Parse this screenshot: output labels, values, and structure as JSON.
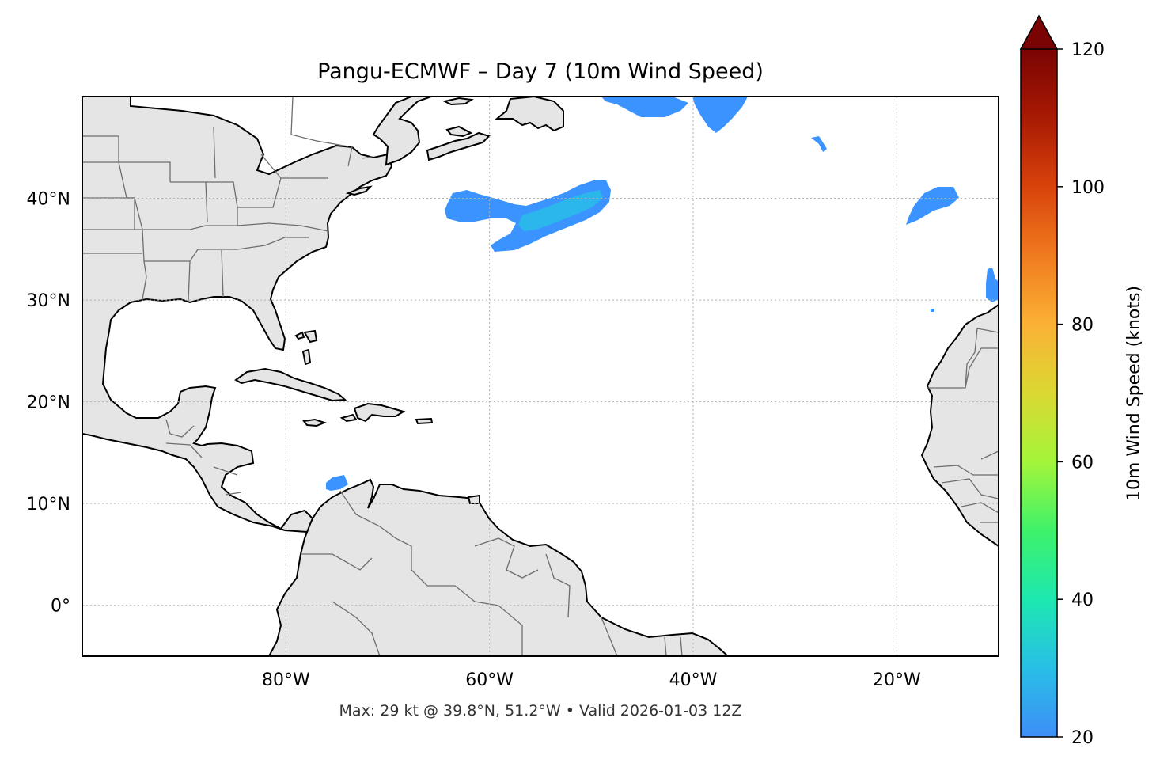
{
  "title": "Pangu-ECMWF – Day 7 (10m Wind Speed)",
  "footer": "Max: 29 kt @ 39.8°N, 51.2°W • Valid 2026-01-03 12Z",
  "map": {
    "lon_range": [
      -100,
      -10
    ],
    "lat_range": [
      -5,
      50
    ],
    "lat_ticks": [
      {
        "value": 40,
        "label": "40°N"
      },
      {
        "value": 30,
        "label": "30°N"
      },
      {
        "value": 20,
        "label": "20°N"
      },
      {
        "value": 10,
        "label": "10°N"
      },
      {
        "value": 0,
        "label": "0°"
      }
    ],
    "lon_ticks": [
      {
        "value": -80,
        "label": "80°W"
      },
      {
        "value": -60,
        "label": "60°W"
      },
      {
        "value": -40,
        "label": "40°W"
      },
      {
        "value": -20,
        "label": "20°W"
      }
    ],
    "land_color": "#e5e5e5",
    "wind_color": "#3a93ff",
    "wind_core_color": "#29bde8"
  },
  "colorbar": {
    "label": "10m Wind Speed (knots)",
    "min": 20,
    "max": 120,
    "ticks": [
      20,
      40,
      60,
      80,
      100,
      120
    ],
    "extend": "max",
    "colormap": [
      "#3e8ef7",
      "#28bfe6",
      "#1de8b0",
      "#3ef26a",
      "#a4f53a",
      "#dbd832",
      "#fbb135",
      "#f07b1f",
      "#d8430b",
      "#a81a03",
      "#7a0403"
    ]
  }
}
